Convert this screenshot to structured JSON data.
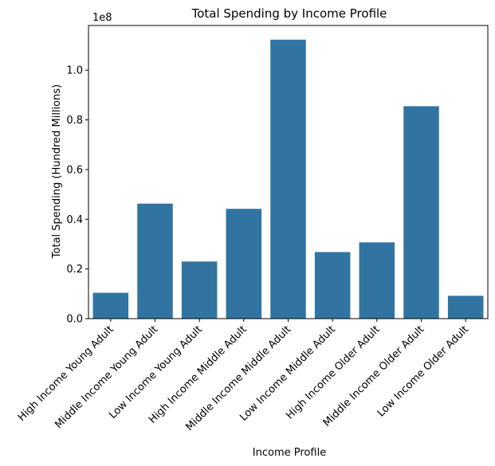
{
  "chart_data": {
    "type": "bar",
    "title": "Total Spending by Income Profile",
    "xlabel": "Income Profile",
    "ylabel": "Total Spending (Hundred Millions)",
    "offset_label": "1e8",
    "categories": [
      "High Income Young Adult",
      "Middle Income Young Adult",
      "Low Income Young Adult",
      "High Income Middle Adult",
      "Middle Income Middle Adult",
      "Low Income Middle Adult",
      "High Income Older Adult",
      "Middle Income Older Adult",
      "Low Income Older Adult"
    ],
    "values": [
      10400000,
      46300000,
      23000000,
      44200000,
      112300000,
      26800000,
      30700000,
      85500000,
      9200000
    ],
    "yticks": [
      0.0,
      0.2,
      0.4,
      0.6,
      0.8,
      1.0
    ],
    "ytick_labels": [
      "0.0",
      "0.2",
      "0.4",
      "0.6",
      "0.8",
      "1.0"
    ],
    "ylim": [
      0,
      118000000
    ],
    "grid": false,
    "bar_color": "#3274a1"
  }
}
